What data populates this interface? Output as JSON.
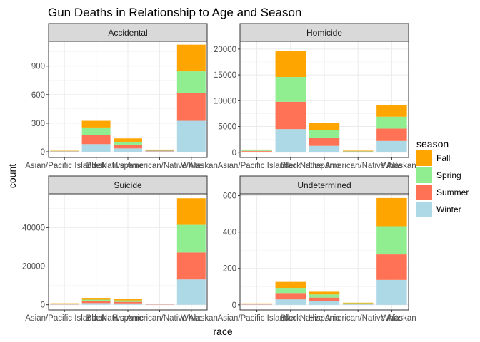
{
  "chart_data": {
    "type": "bar",
    "stacked": true,
    "faceted": true,
    "title": "Gun Deaths in Relationship to Age and Season",
    "xlabel": "race",
    "ylabel": "count",
    "categories": [
      "Asian/Pacific Islander",
      "Black",
      "Hispanic",
      "Native American/Native Alaskan",
      "White"
    ],
    "legend": {
      "title": "season",
      "position": "right",
      "entries": [
        {
          "name": "Fall",
          "color": "#FFA500"
        },
        {
          "name": "Spring",
          "color": "#90EE90"
        },
        {
          "name": "Summer",
          "color": "#FF7256"
        },
        {
          "name": "Winter",
          "color": "#ADD8E6"
        }
      ]
    },
    "stack_order_bottom_to_top": [
      "Winter",
      "Summer",
      "Spring",
      "Fall"
    ],
    "panels": [
      {
        "title": "Accidental",
        "ylim": [
          -60,
          1160
        ],
        "yticks": [
          0,
          300,
          600,
          900
        ],
        "series": [
          {
            "name": "Fall",
            "values": [
              3,
              70,
              35,
              5,
              280
            ]
          },
          {
            "name": "Spring",
            "values": [
              3,
              80,
              30,
              7,
              230
            ]
          },
          {
            "name": "Summer",
            "values": [
              3,
              95,
              40,
              6,
              290
            ]
          },
          {
            "name": "Winter",
            "values": [
              3,
              80,
              35,
              5,
              325
            ]
          }
        ]
      },
      {
        "title": "Homicide",
        "ylim": [
          -1000,
          21500
        ],
        "yticks": [
          0,
          5000,
          10000,
          15000,
          20000
        ],
        "series": [
          {
            "name": "Fall",
            "values": [
              130,
              5000,
              1450,
              80,
              2250
            ]
          },
          {
            "name": "Spring",
            "values": [
              130,
              4800,
              1450,
              80,
              2300
            ]
          },
          {
            "name": "Summer",
            "values": [
              140,
              5300,
              1550,
              85,
              2400
            ]
          },
          {
            "name": "Winter",
            "values": [
              130,
              4500,
              1250,
              75,
              2200
            ]
          }
        ]
      },
      {
        "title": "Suicide",
        "ylim": [
          -2700,
          57500
        ],
        "yticks": [
          0,
          20000,
          40000
        ],
        "series": [
          {
            "name": "Fall",
            "values": [
              190,
              900,
              750,
              140,
              13800
            ]
          },
          {
            "name": "Spring",
            "values": [
              190,
              850,
              750,
              140,
              14300
            ]
          },
          {
            "name": "Summer",
            "values": [
              200,
              950,
              800,
              150,
              14000
            ]
          },
          {
            "name": "Winter",
            "values": [
              170,
              850,
              700,
              130,
              13100
            ]
          }
        ]
      },
      {
        "title": "Undetermined",
        "ylim": [
          -28,
          610
        ],
        "yticks": [
          0,
          200,
          400,
          600
        ],
        "series": [
          {
            "name": "Fall",
            "values": [
              2,
              33,
              15,
              3,
              155
            ]
          },
          {
            "name": "Spring",
            "values": [
              2,
              28,
              17,
              3,
              155
            ]
          },
          {
            "name": "Summer",
            "values": [
              2,
              35,
              18,
              3,
              140
            ]
          },
          {
            "name": "Winter",
            "values": [
              2,
              30,
              22,
              3,
              137
            ]
          }
        ]
      }
    ]
  }
}
